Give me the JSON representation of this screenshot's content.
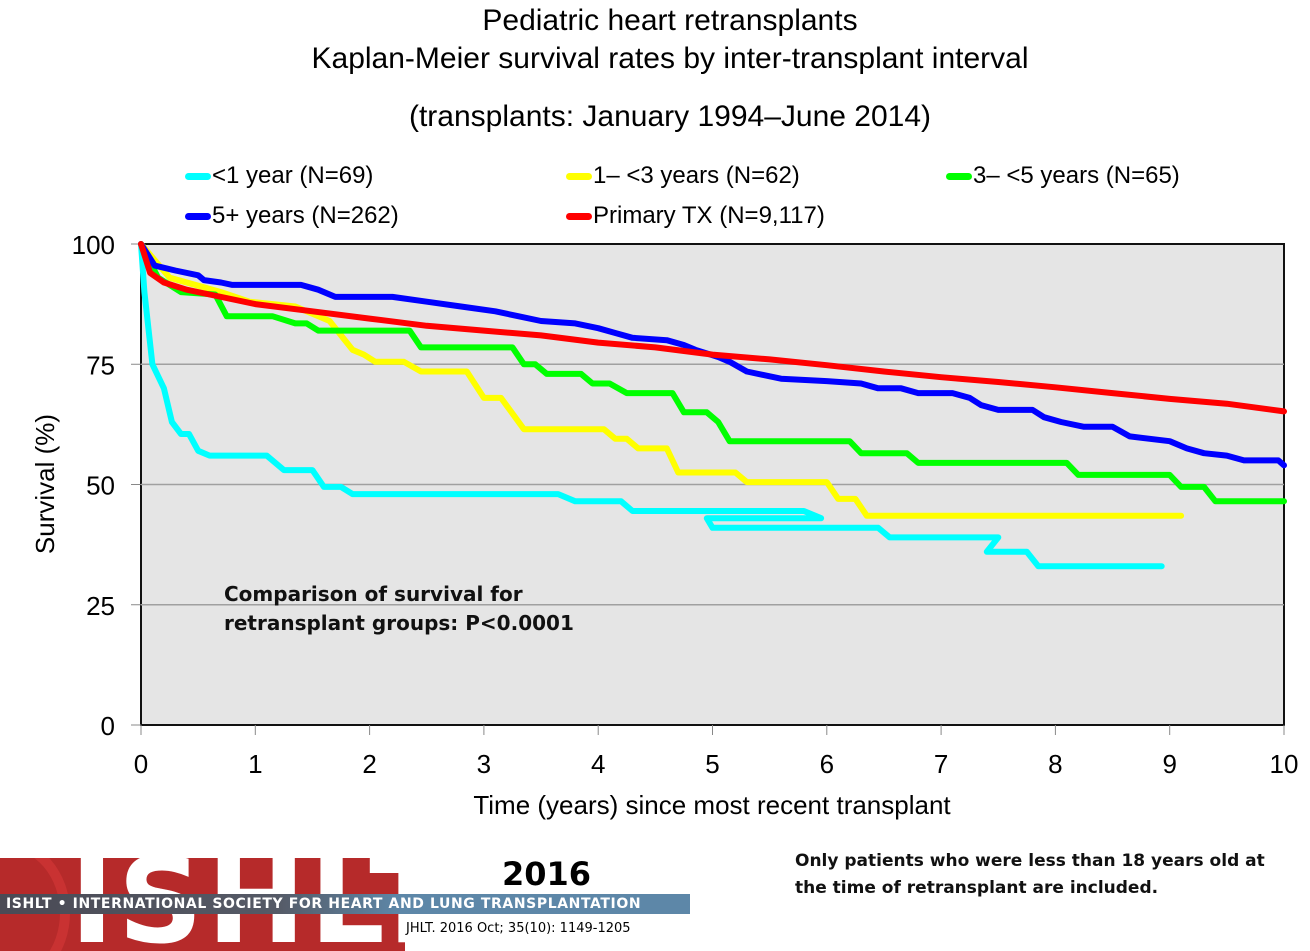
{
  "chart_data": {
    "type": "line",
    "title": "Pediatric heart retransplants",
    "subtitle": "Kaplan-Meier survival rates by inter-transplant interval",
    "subtitle2": "(transplants: January 1994–June 2014)",
    "xlabel": "Time (years) since most recent transplant",
    "ylabel": "Survival (%)",
    "xlim": [
      0,
      10
    ],
    "ylim": [
      0,
      100
    ],
    "xticks": [
      "0",
      "1",
      "2",
      "3",
      "4",
      "5",
      "6",
      "7",
      "8",
      "9",
      "10"
    ],
    "yticks": [
      "0",
      "25",
      "50",
      "75",
      "100"
    ],
    "grid": "horizontal",
    "legend_position": "top",
    "annotation": "Comparison of survival for retransplant groups: P<0.0001",
    "series": [
      {
        "name": "<1 year (N=69)",
        "color": "#00ffff",
        "points": [
          [
            0,
            100
          ],
          [
            0.03,
            90
          ],
          [
            0.1,
            75
          ],
          [
            0.2,
            70
          ],
          [
            0.27,
            63
          ],
          [
            0.35,
            60.5
          ],
          [
            0.42,
            60.5
          ],
          [
            0.5,
            57
          ],
          [
            0.6,
            56
          ],
          [
            1.1,
            56
          ],
          [
            1.25,
            53
          ],
          [
            1.5,
            53
          ],
          [
            1.6,
            49.5
          ],
          [
            1.75,
            49.5
          ],
          [
            1.85,
            48
          ],
          [
            3.65,
            48
          ],
          [
            3.8,
            46.5
          ],
          [
            4.2,
            46.5
          ],
          [
            4.3,
            44.5
          ],
          [
            5.8,
            44.5
          ],
          [
            5.95,
            43
          ],
          [
            5.05,
            43
          ],
          [
            4.95,
            43
          ],
          [
            5.0,
            41
          ],
          [
            6.45,
            41
          ],
          [
            6.55,
            39
          ],
          [
            7.5,
            39
          ],
          [
            7.4,
            36
          ],
          [
            7.75,
            36
          ],
          [
            7.85,
            33
          ],
          [
            8.93,
            33
          ]
        ]
      },
      {
        "name": "1– <3 years (N=62)",
        "color": "#ffff00",
        "points": [
          [
            0,
            100
          ],
          [
            0.25,
            93
          ],
          [
            0.55,
            91
          ],
          [
            0.7,
            90
          ],
          [
            0.95,
            88
          ],
          [
            1.35,
            87
          ],
          [
            1.65,
            84
          ],
          [
            1.85,
            78
          ],
          [
            1.95,
            77
          ],
          [
            2.05,
            75.5
          ],
          [
            2.3,
            75.5
          ],
          [
            2.45,
            73.5
          ],
          [
            2.85,
            73.5
          ],
          [
            3.0,
            68
          ],
          [
            3.15,
            68
          ],
          [
            3.35,
            61.5
          ],
          [
            4.05,
            61.5
          ],
          [
            4.15,
            59.5
          ],
          [
            4.25,
            59.5
          ],
          [
            4.35,
            57.5
          ],
          [
            4.6,
            57.5
          ],
          [
            4.7,
            52.5
          ],
          [
            5.2,
            52.5
          ],
          [
            5.3,
            50.5
          ],
          [
            6.0,
            50.5
          ],
          [
            6.1,
            47
          ],
          [
            6.25,
            47
          ],
          [
            6.35,
            43.5
          ],
          [
            9.1,
            43.5
          ]
        ]
      },
      {
        "name": "3– <5 years (N=65)",
        "color": "#00ff00",
        "points": [
          [
            0,
            100
          ],
          [
            0.15,
            93
          ],
          [
            0.35,
            90
          ],
          [
            0.65,
            89.5
          ],
          [
            0.75,
            85
          ],
          [
            1.15,
            85
          ],
          [
            1.35,
            83.5
          ],
          [
            1.45,
            83.5
          ],
          [
            1.55,
            82
          ],
          [
            2.35,
            82
          ],
          [
            2.45,
            78.5
          ],
          [
            3.25,
            78.5
          ],
          [
            3.35,
            75
          ],
          [
            3.45,
            75
          ],
          [
            3.55,
            73
          ],
          [
            3.85,
            73
          ],
          [
            3.95,
            71
          ],
          [
            4.1,
            71
          ],
          [
            4.25,
            69
          ],
          [
            4.65,
            69
          ],
          [
            4.75,
            65
          ],
          [
            4.95,
            65
          ],
          [
            5.05,
            63
          ],
          [
            5.15,
            59
          ],
          [
            6.2,
            59
          ],
          [
            6.3,
            56.5
          ],
          [
            6.7,
            56.5
          ],
          [
            6.8,
            54.5
          ],
          [
            8.1,
            54.5
          ],
          [
            8.2,
            52
          ],
          [
            9.0,
            52
          ],
          [
            9.1,
            49.5
          ],
          [
            9.3,
            49.5
          ],
          [
            9.4,
            46.5
          ],
          [
            10,
            46.5
          ]
        ]
      },
      {
        "name": "5+ years (N=262)",
        "color": "#0000ff",
        "points": [
          [
            0,
            100
          ],
          [
            0.12,
            95.5
          ],
          [
            0.3,
            94.5
          ],
          [
            0.5,
            93.5
          ],
          [
            0.55,
            92.5
          ],
          [
            0.7,
            92
          ],
          [
            0.8,
            91.5
          ],
          [
            1.4,
            91.5
          ],
          [
            1.55,
            90.5
          ],
          [
            1.7,
            89
          ],
          [
            2.2,
            89
          ],
          [
            2.5,
            88
          ],
          [
            2.8,
            87
          ],
          [
            3.1,
            86
          ],
          [
            3.3,
            85
          ],
          [
            3.5,
            84
          ],
          [
            3.8,
            83.5
          ],
          [
            4.0,
            82.5
          ],
          [
            4.15,
            81.5
          ],
          [
            4.3,
            80.5
          ],
          [
            4.6,
            80
          ],
          [
            4.75,
            79
          ],
          [
            4.85,
            78
          ],
          [
            5.05,
            76.5
          ],
          [
            5.15,
            75.5
          ],
          [
            5.3,
            73.5
          ],
          [
            5.5,
            72.5
          ],
          [
            5.6,
            72
          ],
          [
            6.0,
            71.5
          ],
          [
            6.3,
            71
          ],
          [
            6.45,
            70
          ],
          [
            6.65,
            70
          ],
          [
            6.8,
            69
          ],
          [
            7.1,
            69
          ],
          [
            7.25,
            68
          ],
          [
            7.35,
            66.5
          ],
          [
            7.5,
            65.5
          ],
          [
            7.8,
            65.5
          ],
          [
            7.9,
            64
          ],
          [
            8.05,
            63
          ],
          [
            8.25,
            62
          ],
          [
            8.5,
            62
          ],
          [
            8.65,
            60
          ],
          [
            9.0,
            59
          ],
          [
            9.15,
            57.5
          ],
          [
            9.3,
            56.5
          ],
          [
            9.5,
            56
          ],
          [
            9.65,
            55
          ],
          [
            9.95,
            55
          ],
          [
            10,
            54
          ]
        ]
      },
      {
        "name": "Primary TX (N=9,117)",
        "color": "#ff0000",
        "points": [
          [
            0,
            100
          ],
          [
            0.08,
            94
          ],
          [
            0.2,
            92
          ],
          [
            0.4,
            90.5
          ],
          [
            0.6,
            89.5
          ],
          [
            1.0,
            87.5
          ],
          [
            1.5,
            86
          ],
          [
            2.0,
            84.5
          ],
          [
            2.5,
            83
          ],
          [
            3.0,
            82
          ],
          [
            3.5,
            81
          ],
          [
            4.0,
            79.5
          ],
          [
            4.5,
            78.5
          ],
          [
            5.0,
            77
          ],
          [
            5.5,
            76
          ],
          [
            6.0,
            74.8
          ],
          [
            6.5,
            73.5
          ],
          [
            7.0,
            72.3
          ],
          [
            7.5,
            71.3
          ],
          [
            8.0,
            70.2
          ],
          [
            8.5,
            69
          ],
          [
            9.0,
            67.8
          ],
          [
            9.5,
            66.8
          ],
          [
            10,
            65.2
          ]
        ]
      }
    ]
  },
  "footer": {
    "logo_text": "ISHLT",
    "banner_text": "ISHLT • INTERNATIONAL SOCIETY FOR HEART AND LUNG TRANSPLANTATION",
    "year": "2016",
    "citation": "JHLT. 2016 Oct; 35(10): 1149-1205",
    "note_line1": "Only patients who were less than 18 years old at",
    "note_line2": "the time of retransplant are included."
  }
}
